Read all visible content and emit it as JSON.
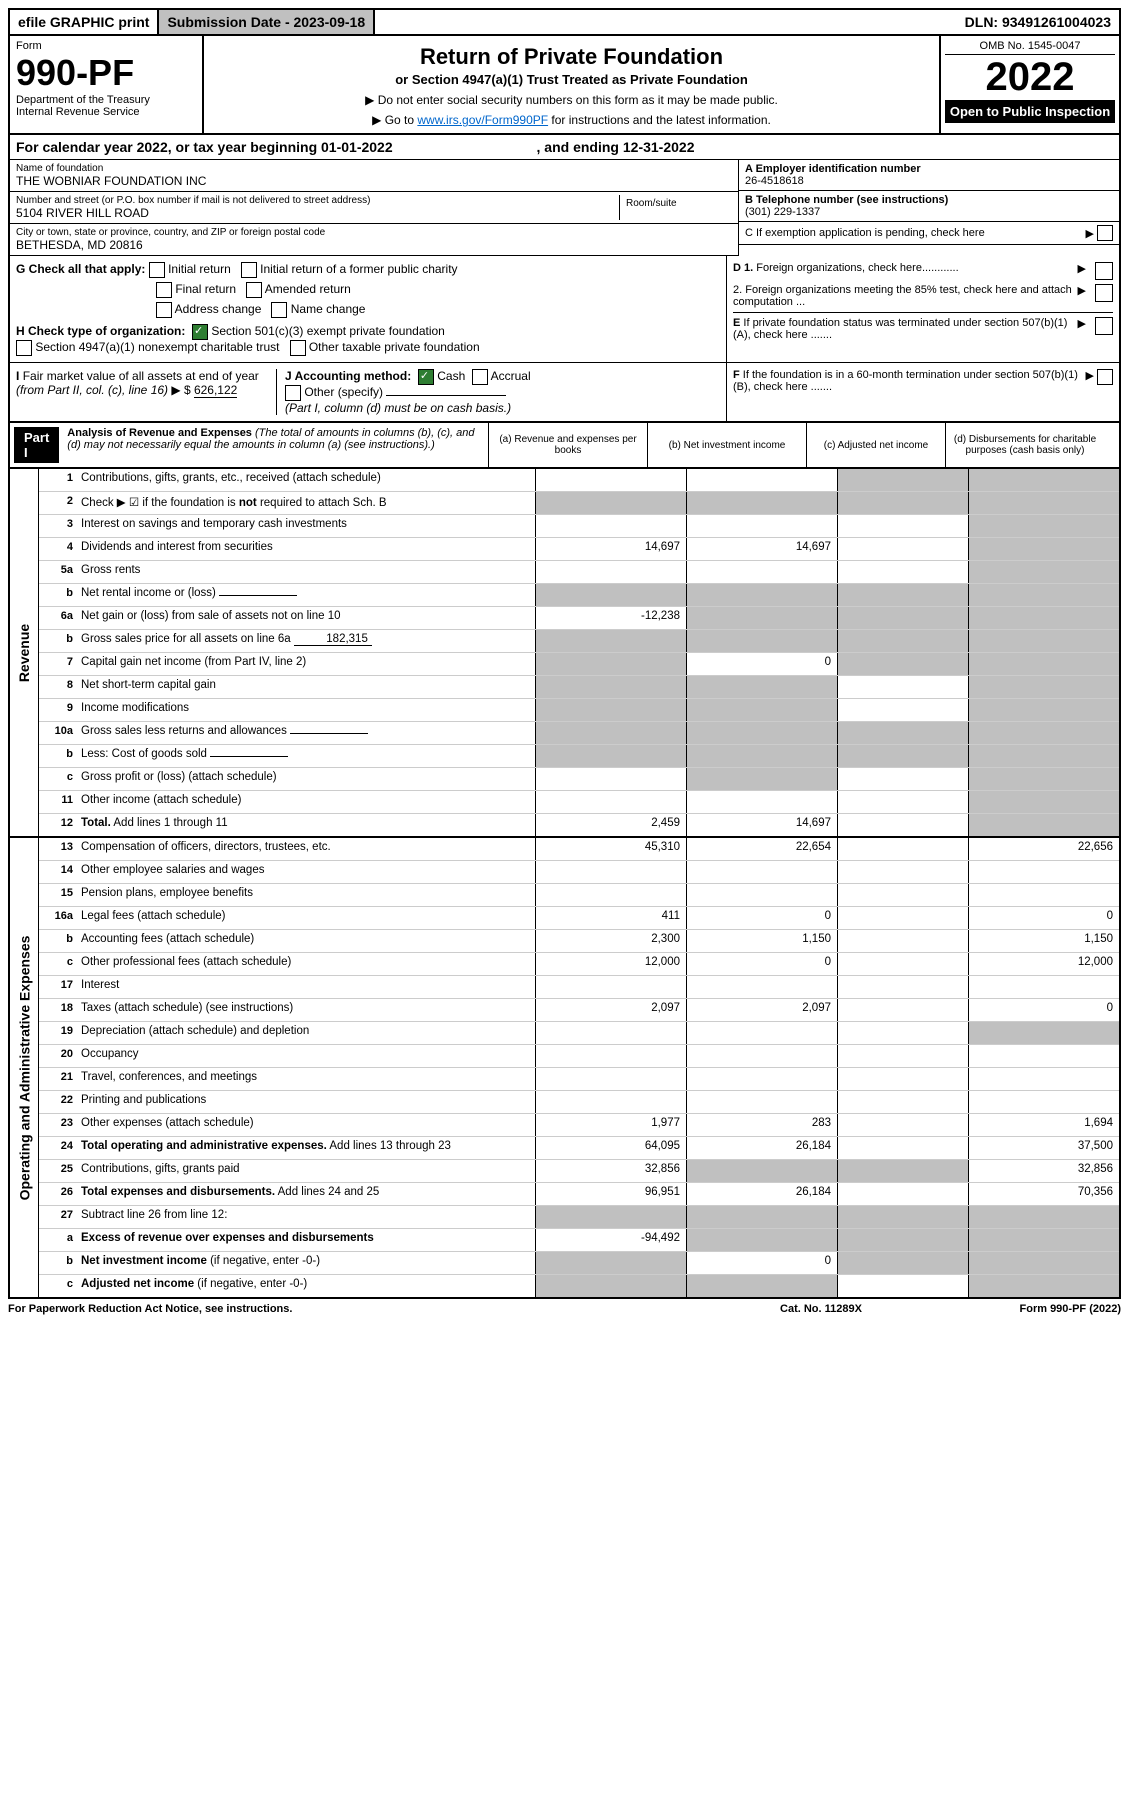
{
  "top_bar": {
    "efile": "efile GRAPHIC print",
    "submission_label": "Submission Date - 2023-09-18",
    "dln": "DLN: 93491261004023"
  },
  "header": {
    "form_label": "Form",
    "form_number": "990-PF",
    "dept": "Department of the Treasury",
    "irs": "Internal Revenue Service",
    "title": "Return of Private Foundation",
    "subtitle": "or Section 4947(a)(1) Trust Treated as Private Foundation",
    "note1": "▶ Do not enter social security numbers on this form as it may be made public.",
    "note2_pre": "▶ Go to ",
    "note2_link": "www.irs.gov/Form990PF",
    "note2_post": " for instructions and the latest information.",
    "omb": "OMB No. 1545-0047",
    "year": "2022",
    "open_public": "Open to Public Inspection"
  },
  "calendar_year": {
    "text_pre": "For calendar year 2022, or tax year beginning ",
    "begin": "01-01-2022",
    "text_mid": " , and ending ",
    "end": "12-31-2022"
  },
  "entity": {
    "name_label": "Name of foundation",
    "name": "THE WOBNIAR FOUNDATION INC",
    "addr_label": "Number and street (or P.O. box number if mail is not delivered to street address)",
    "addr": "5104 RIVER HILL ROAD",
    "room_label": "Room/suite",
    "city_label": "City or town, state or province, country, and ZIP or foreign postal code",
    "city": "BETHESDA, MD  20816",
    "ein_label": "A Employer identification number",
    "ein": "26-4518618",
    "phone_label": "B Telephone number (see instructions)",
    "phone": "(301) 229-1337",
    "c_label": "C If exemption application is pending, check here"
  },
  "checks": {
    "g_label": "G Check all that apply:",
    "g_items": [
      "Initial return",
      "Initial return of a former public charity",
      "Final return",
      "Amended return",
      "Address change",
      "Name change"
    ],
    "h_label": "H Check type of organization:",
    "h1": "Section 501(c)(3) exempt private foundation",
    "h2": "Section 4947(a)(1) nonexempt charitable trust",
    "h3": "Other taxable private foundation",
    "d1": "D 1. Foreign organizations, check here............",
    "d2": "2. Foreign organizations meeting the 85% test, check here and attach computation ...",
    "e": "E If private foundation status was terminated under section 507(b)(1)(A), check here .......",
    "f": "F If the foundation is in a 60-month termination under section 507(b)(1)(B), check here ......."
  },
  "fmi": {
    "i_label": "I Fair market value of all assets at end of year (from Part II, col. (c), line 16)",
    "i_value": "626,122",
    "j_label": "J Accounting method:",
    "j_cash": "Cash",
    "j_accrual": "Accrual",
    "j_other": "Other (specify)",
    "j_note": "(Part I, column (d) must be on cash basis.)"
  },
  "part1": {
    "part_label": "Part I",
    "desc_title": "Analysis of Revenue and Expenses",
    "desc_note": "(The total of amounts in columns (b), (c), and (d) may not necessarily equal the amounts in column (a) (see instructions).)",
    "col_a": "(a) Revenue and expenses per books",
    "col_b": "(b) Net investment income",
    "col_c": "(c) Adjusted net income",
    "col_d": "(d) Disbursements for charitable purposes (cash basis only)"
  },
  "side_labels": {
    "revenue": "Revenue",
    "expenses": "Operating and Administrative Expenses"
  },
  "rows": [
    {
      "num": "1",
      "desc": "Contributions, gifts, grants, etc., received (attach schedule)",
      "a": "",
      "b": "",
      "c": "shaded",
      "d": "shaded"
    },
    {
      "num": "2",
      "desc": "Check ▶ ☑ if the foundation is <b>not</b> required to attach Sch. B",
      "a": "shaded",
      "b": "shaded",
      "c": "shaded",
      "d": "shaded",
      "nocells": true
    },
    {
      "num": "3",
      "desc": "Interest on savings and temporary cash investments",
      "a": "",
      "b": "",
      "c": "",
      "d": "shaded"
    },
    {
      "num": "4",
      "desc": "Dividends and interest from securities",
      "a": "14,697",
      "b": "14,697",
      "c": "",
      "d": "shaded"
    },
    {
      "num": "5a",
      "desc": "Gross rents",
      "a": "",
      "b": "",
      "c": "",
      "d": "shaded"
    },
    {
      "num": "b",
      "desc": "Net rental income or (loss)",
      "a": "shaded",
      "b": "shaded",
      "c": "shaded",
      "d": "shaded",
      "inline": ""
    },
    {
      "num": "6a",
      "desc": "Net gain or (loss) from sale of assets not on line 10",
      "a": "-12,238",
      "b": "shaded",
      "c": "shaded",
      "d": "shaded"
    },
    {
      "num": "b",
      "desc": "Gross sales price for all assets on line 6a",
      "a": "shaded",
      "b": "shaded",
      "c": "shaded",
      "d": "shaded",
      "inline": "182,315"
    },
    {
      "num": "7",
      "desc": "Capital gain net income (from Part IV, line 2)",
      "a": "shaded",
      "b": "0",
      "c": "shaded",
      "d": "shaded"
    },
    {
      "num": "8",
      "desc": "Net short-term capital gain",
      "a": "shaded",
      "b": "shaded",
      "c": "",
      "d": "shaded"
    },
    {
      "num": "9",
      "desc": "Income modifications",
      "a": "shaded",
      "b": "shaded",
      "c": "",
      "d": "shaded"
    },
    {
      "num": "10a",
      "desc": "Gross sales less returns and allowances",
      "a": "shaded",
      "b": "shaded",
      "c": "shaded",
      "d": "shaded",
      "inline": ""
    },
    {
      "num": "b",
      "desc": "Less: Cost of goods sold",
      "a": "shaded",
      "b": "shaded",
      "c": "shaded",
      "d": "shaded",
      "inline": ""
    },
    {
      "num": "c",
      "desc": "Gross profit or (loss) (attach schedule)",
      "a": "",
      "b": "shaded",
      "c": "",
      "d": "shaded"
    },
    {
      "num": "11",
      "desc": "Other income (attach schedule)",
      "a": "",
      "b": "",
      "c": "",
      "d": "shaded"
    },
    {
      "num": "12",
      "desc": "<b>Total.</b> Add lines 1 through 11",
      "a": "2,459",
      "b": "14,697",
      "c": "",
      "d": "shaded"
    }
  ],
  "expense_rows": [
    {
      "num": "13",
      "desc": "Compensation of officers, directors, trustees, etc.",
      "a": "45,310",
      "b": "22,654",
      "c": "",
      "d": "22,656"
    },
    {
      "num": "14",
      "desc": "Other employee salaries and wages",
      "a": "",
      "b": "",
      "c": "",
      "d": ""
    },
    {
      "num": "15",
      "desc": "Pension plans, employee benefits",
      "a": "",
      "b": "",
      "c": "",
      "d": ""
    },
    {
      "num": "16a",
      "desc": "Legal fees (attach schedule)",
      "a": "411",
      "b": "0",
      "c": "",
      "d": "0"
    },
    {
      "num": "b",
      "desc": "Accounting fees (attach schedule)",
      "a": "2,300",
      "b": "1,150",
      "c": "",
      "d": "1,150"
    },
    {
      "num": "c",
      "desc": "Other professional fees (attach schedule)",
      "a": "12,000",
      "b": "0",
      "c": "",
      "d": "12,000"
    },
    {
      "num": "17",
      "desc": "Interest",
      "a": "",
      "b": "",
      "c": "",
      "d": ""
    },
    {
      "num": "18",
      "desc": "Taxes (attach schedule) (see instructions)",
      "a": "2,097",
      "b": "2,097",
      "c": "",
      "d": "0"
    },
    {
      "num": "19",
      "desc": "Depreciation (attach schedule) and depletion",
      "a": "",
      "b": "",
      "c": "",
      "d": "shaded"
    },
    {
      "num": "20",
      "desc": "Occupancy",
      "a": "",
      "b": "",
      "c": "",
      "d": ""
    },
    {
      "num": "21",
      "desc": "Travel, conferences, and meetings",
      "a": "",
      "b": "",
      "c": "",
      "d": ""
    },
    {
      "num": "22",
      "desc": "Printing and publications",
      "a": "",
      "b": "",
      "c": "",
      "d": ""
    },
    {
      "num": "23",
      "desc": "Other expenses (attach schedule)",
      "a": "1,977",
      "b": "283",
      "c": "",
      "d": "1,694"
    },
    {
      "num": "24",
      "desc": "<b>Total operating and administrative expenses.</b> Add lines 13 through 23",
      "a": "64,095",
      "b": "26,184",
      "c": "",
      "d": "37,500"
    },
    {
      "num": "25",
      "desc": "Contributions, gifts, grants paid",
      "a": "32,856",
      "b": "shaded",
      "c": "shaded",
      "d": "32,856"
    },
    {
      "num": "26",
      "desc": "<b>Total expenses and disbursements.</b> Add lines 24 and 25",
      "a": "96,951",
      "b": "26,184",
      "c": "",
      "d": "70,356"
    },
    {
      "num": "27",
      "desc": "Subtract line 26 from line 12:",
      "a": "shaded",
      "b": "shaded",
      "c": "shaded",
      "d": "shaded"
    },
    {
      "num": "a",
      "desc": "<b>Excess of revenue over expenses and disbursements</b>",
      "a": "-94,492",
      "b": "shaded",
      "c": "shaded",
      "d": "shaded"
    },
    {
      "num": "b",
      "desc": "<b>Net investment income</b> (if negative, enter -0-)",
      "a": "shaded",
      "b": "0",
      "c": "shaded",
      "d": "shaded"
    },
    {
      "num": "c",
      "desc": "<b>Adjusted net income</b> (if negative, enter -0-)",
      "a": "shaded",
      "b": "shaded",
      "c": "",
      "d": "shaded"
    }
  ],
  "footer": {
    "left": "For Paperwork Reduction Act Notice, see instructions.",
    "mid": "Cat. No. 11289X",
    "right": "Form 990-PF (2022)"
  },
  "colors": {
    "header_gray": "#c0c0c0",
    "black": "#000000",
    "link": "#0066cc",
    "check_green": "#2e7d32"
  }
}
